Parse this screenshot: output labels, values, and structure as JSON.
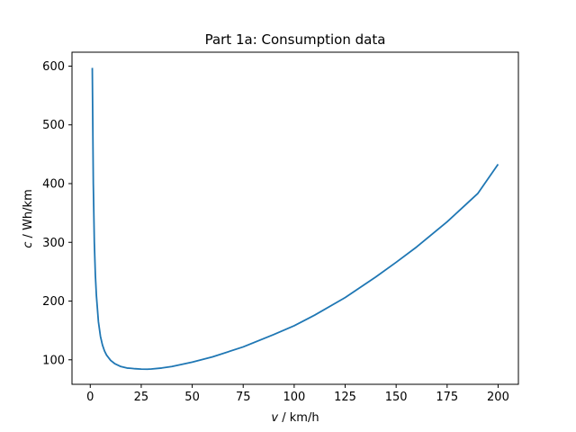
{
  "chart_data": {
    "type": "line",
    "title": "Part 1a: Consumption data",
    "xlabel": {
      "var": "v",
      "unit": " / km/h"
    },
    "ylabel": {
      "var": "c",
      "unit": " / Wh/km"
    },
    "xlim": [
      -8.95,
      209.95
    ],
    "ylim": [
      58.3,
      623.7
    ],
    "xticks": [
      0,
      25,
      50,
      75,
      100,
      125,
      150,
      175,
      200
    ],
    "yticks": [
      100,
      200,
      300,
      400,
      500,
      600
    ],
    "grid": false,
    "series": [
      {
        "color": "#1f77b4",
        "x": [
          1,
          1.5,
          2,
          2.5,
          3,
          4,
          5,
          6,
          7,
          8,
          10,
          12,
          15,
          18,
          20,
          22,
          25,
          28,
          30,
          35,
          40,
          50,
          60,
          75,
          90,
          100,
          110,
          125,
          140,
          150,
          160,
          175,
          190,
          200
        ],
        "y": [
          597,
          400,
          300,
          245,
          210,
          165,
          140,
          125,
          115,
          108,
          99,
          93.5,
          88.5,
          86,
          85.5,
          84.8,
          84.2,
          84.0,
          84.3,
          86,
          88.5,
          96,
          105,
          122,
          143,
          158,
          176,
          206,
          241,
          266,
          292,
          335,
          383,
          433
        ]
      }
    ]
  }
}
